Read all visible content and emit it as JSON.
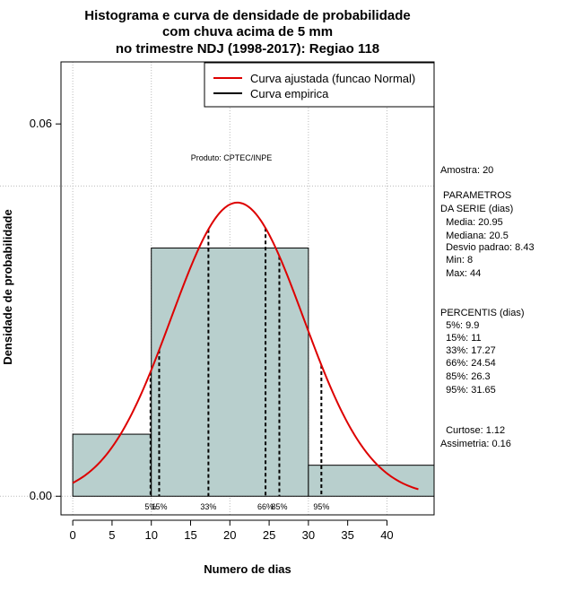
{
  "chart_data": {
    "type": "histogram",
    "title_lines": [
      "Histograma e curva de densidade de probabilidade",
      "com chuva acima de 5 mm",
      "no trimestre NDJ (1998-2017): Regiao 118"
    ],
    "xlabel": "Numero de dias",
    "ylabel": "Densidade de probabilidade",
    "xlim": [
      -1.5,
      46
    ],
    "ylim": [
      -0.003,
      0.07
    ],
    "x_ticks": [
      0,
      5,
      10,
      15,
      20,
      25,
      30,
      35,
      40
    ],
    "x_tick_labels": [
      "0",
      "5",
      "10",
      "15",
      "20",
      "25",
      "30",
      "35",
      "40"
    ],
    "y_ticks": [
      0.0,
      0.06
    ],
    "y_tick_labels": [
      "0.00",
      "0.06"
    ],
    "x_gridlines": [
      0,
      10,
      20,
      30,
      40
    ],
    "y_gridlines": [
      0.0,
      0.05
    ],
    "bins": [
      {
        "from": 0,
        "to": 10,
        "density": 0.01
      },
      {
        "from": 10,
        "to": 30,
        "density": 0.04
      },
      {
        "from": 30,
        "to": 46,
        "density": 0.005
      }
    ],
    "normal_curve": {
      "mean": 20.95,
      "sd": 8.43,
      "x_from": 0,
      "x_to": 44,
      "color": "#dd0000"
    },
    "percentile_lines": [
      {
        "label": "5%",
        "x": 9.9
      },
      {
        "label": "15%",
        "x": 11
      },
      {
        "label": "33%",
        "x": 17.27
      },
      {
        "label": "66%",
        "x": 24.54
      },
      {
        "label": "85%",
        "x": 26.3
      },
      {
        "label": "95%",
        "x": 31.65
      }
    ],
    "legend": {
      "position": "top-right",
      "entries": [
        {
          "label": "Curva ajustada (funcao Normal)",
          "color": "#dd0000"
        },
        {
          "label": "Curva empirica",
          "color": "#000000"
        }
      ]
    },
    "annotation": "Produto: CPTEC/INPE",
    "colors": {
      "bar_fill": "#b8cfcd",
      "curve": "#dd0000",
      "grid": "#bbbbbb"
    }
  },
  "side_panel": {
    "lines": [
      "Amostra: 20",
      " PARAMETROS",
      "DA SERIE (dias)",
      "  Media: 20.95",
      "  Mediana: 20.5",
      "  Desvio padrao: 8.43",
      "  Min: 8",
      "  Max: 44",
      "PERCENTIS (dias)",
      "  5%: 9.9",
      "  15%: 11",
      "  33%: 17.27",
      "  66%: 24.54",
      "  85%: 26.3",
      "  95%: 31.65",
      "  Curtose: 1.12",
      "Assimetria: 0.16"
    ]
  }
}
